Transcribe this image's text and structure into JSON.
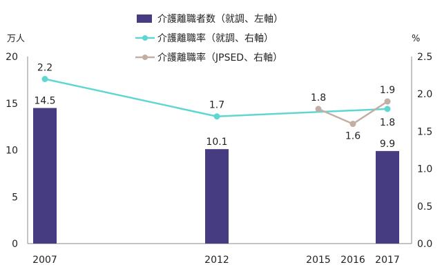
{
  "chart_data": {
    "type": "bar+line",
    "x": [
      2007,
      2012,
      2015,
      2016,
      2017
    ],
    "x_tick_labels": [
      "2007",
      "2012",
      "2015",
      "2016",
      "2017"
    ],
    "y_left_unit": "万人",
    "y_right_unit": "%",
    "y_left_lim": [
      0,
      20
    ],
    "y_left_ticks": [
      "0",
      "5",
      "10",
      "15",
      "20"
    ],
    "y_right_lim": [
      0,
      2.5
    ],
    "y_right_ticks": [
      "0.0",
      "0.5",
      "1.0",
      "1.5",
      "2.0",
      "2.5"
    ],
    "grid": false,
    "legend_position": "top-center",
    "series": [
      {
        "name": "介護離職者数（就調、左軸）",
        "kind": "bar",
        "axis": "left",
        "color": "#463c82",
        "x": [
          2007,
          2012,
          2017
        ],
        "values": [
          14.5,
          10.1,
          9.9
        ],
        "labels": [
          "14.5",
          "10.1",
          "9.9"
        ]
      },
      {
        "name": "介護離職率（就調、右軸）",
        "kind": "line",
        "axis": "right",
        "color": "#5ed6d2",
        "x": [
          2007,
          2012,
          2017
        ],
        "values": [
          2.2,
          1.7,
          1.8
        ],
        "labels": [
          "2.2",
          "1.7",
          "1.8"
        ]
      },
      {
        "name": "介護離職率（JPSED、右軸）",
        "kind": "line",
        "axis": "right",
        "color": "#c3aea4",
        "x": [
          2015,
          2016,
          2017
        ],
        "values": [
          1.8,
          1.6,
          1.9
        ],
        "labels": [
          "1.8",
          "1.6",
          "1.9"
        ]
      }
    ]
  }
}
